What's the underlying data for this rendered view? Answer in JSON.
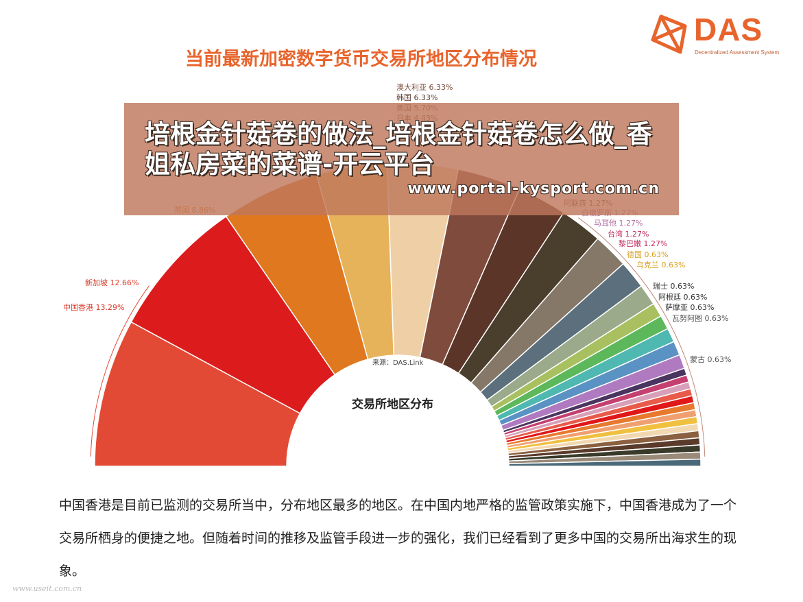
{
  "header": {
    "title": "当前最新加密数字货币交易所地区分布情况",
    "logo_text": "DAS",
    "logo_subtitle": "Decentralized Assessment System"
  },
  "overlay": {
    "title": "培根金针菇卷的做法_培根金针菇卷怎么做_香姐私房菜的菜谱-开云平台",
    "url": "www.portal-kysport.com.cn"
  },
  "chart_center": {
    "source": "来源：DAS.Link",
    "title": "交易所地区分布"
  },
  "chart_data": {
    "type": "pie",
    "layout": "semicircle-donut",
    "categories": [
      "中国香港",
      "新加坡",
      "英国",
      "韩国",
      "澳大利亚",
      "阿联酋",
      "白俄罗斯",
      "马耳他",
      "台湾",
      "黎巴嫩",
      "德国",
      "乌克兰",
      "瑞士",
      "阿根廷",
      "萨摩亚",
      "瓦努阿图",
      "蒙古"
    ],
    "values": [
      13.29,
      12.66,
      8.86,
      6.33,
      6.33,
      1.27,
      1.27,
      1.27,
      1.27,
      1.27,
      0.63,
      0.63,
      0.63,
      0.63,
      0.63,
      0.63,
      0.63
    ],
    "labels": [
      {
        "text": "中国香港 13.29%",
        "color": "#d83a2a"
      },
      {
        "text": "新加坡 12.66%",
        "color": "#d83a2a"
      },
      {
        "text": "英国 8.86%",
        "color": "#e07a2a"
      },
      {
        "text": "澳大利亚 6.33%",
        "color": "#7a4a3a"
      },
      {
        "text": "韩国 6.33%",
        "color": "#5a3a2e"
      },
      {
        "text": "美国 5.70%",
        "color": "#7a4a3a"
      },
      {
        "text": "日本 4.43%",
        "color": "#7a4a3a"
      },
      {
        "text": "阿联酋 1.27%",
        "color": "#7a4a3a"
      },
      {
        "text": "白俄罗斯 1.27%",
        "color": "#b06aa0"
      },
      {
        "text": "马耳他 1.27%",
        "color": "#b06aa0"
      },
      {
        "text": "台湾 1.27%",
        "color": "#c02a5a"
      },
      {
        "text": "黎巴嫩 1.27%",
        "color": "#c02a5a"
      },
      {
        "text": "德国 0.63%",
        "color": "#d8a020"
      },
      {
        "text": "乌克兰 0.63%",
        "color": "#d8a020"
      },
      {
        "text": "瑞士 0.63%",
        "color": "#333333"
      },
      {
        "text": "阿根廷 0.63%",
        "color": "#333333"
      },
      {
        "text": "萨摩亚 0.63%",
        "color": "#333333"
      },
      {
        "text": "瓦努阿图 0.63%",
        "color": "#555555"
      },
      {
        "text": "蒙古 0.63%",
        "color": "#555555"
      }
    ],
    "segments": [
      {
        "value": 13.29,
        "color": "#e34a35"
      },
      {
        "value": 12.66,
        "color": "#dc1c1c"
      },
      {
        "value": 8.86,
        "color": "#e07820"
      },
      {
        "value": 6.33,
        "color": "#e6b25a"
      },
      {
        "value": 6.33,
        "color": "#efcfa6"
      },
      {
        "value": 5.7,
        "color": "#7f4b3c"
      },
      {
        "value": 4.43,
        "color": "#5b3628"
      },
      {
        "value": 3.8,
        "color": "#4a3e2c"
      },
      {
        "value": 3.16,
        "color": "#857868"
      },
      {
        "value": 2.53,
        "color": "#5b707c"
      },
      {
        "value": 1.9,
        "color": "#9aaa8a"
      },
      {
        "value": 1.27,
        "color": "#a8c060"
      },
      {
        "value": 1.27,
        "color": "#5cb85a"
      },
      {
        "value": 1.27,
        "color": "#4fb8b0"
      },
      {
        "value": 1.27,
        "color": "#5a92c4"
      },
      {
        "value": 1.27,
        "color": "#b07ac0"
      },
      {
        "value": 0.63,
        "color": "#4a3560"
      },
      {
        "value": 0.63,
        "color": "#c44070"
      },
      {
        "value": 0.63,
        "color": "#d8a0b8"
      },
      {
        "value": 0.63,
        "color": "#e85a4a"
      },
      {
        "value": 0.63,
        "color": "#e01818"
      },
      {
        "value": 0.63,
        "color": "#e87a30"
      },
      {
        "value": 0.63,
        "color": "#f0a070"
      },
      {
        "value": 0.63,
        "color": "#f0c040"
      },
      {
        "value": 0.63,
        "color": "#f2d8b0"
      },
      {
        "value": 0.63,
        "color": "#8a6040"
      },
      {
        "value": 0.63,
        "color": "#5a3a2a"
      },
      {
        "value": 0.63,
        "color": "#3a3a2a"
      },
      {
        "value": 0.63,
        "color": "#9a8a78"
      },
      {
        "value": 0.63,
        "color": "#4a6878"
      }
    ]
  },
  "body": {
    "paragraph": "中国香港是目前已监测的交易所当中，分布地区最多的地区。在中国内地严格的监管政策实施下，中国香港成为了一个交易所栖身的便捷之地。但随着时间的推移及监管手段进一步的强化，我们已经看到了更多中国的交易所出海求生的现象。"
  },
  "footer": {
    "watermark": "www.useit.com.cn"
  },
  "colors": {
    "accent": "#e8642c",
    "overlay": "#be785c"
  }
}
